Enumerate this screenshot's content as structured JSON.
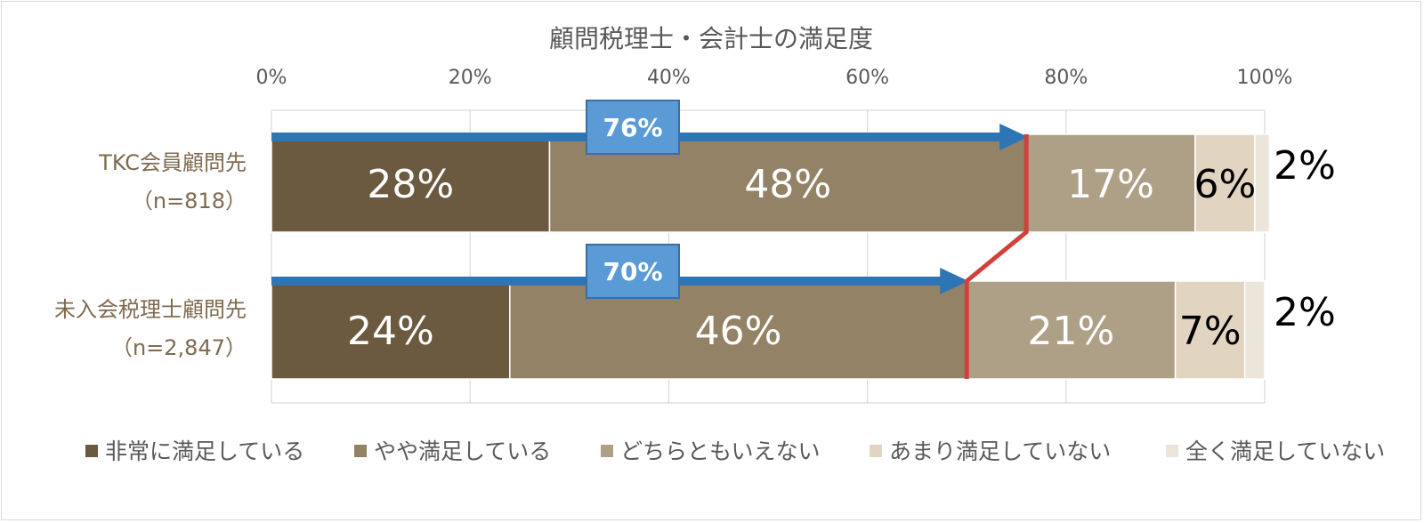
{
  "chart_data": {
    "type": "bar",
    "orientation": "horizontal",
    "stacked": "percent",
    "title": "顧問税理士・会計士の満足度",
    "xlim": [
      0,
      100
    ],
    "x_ticks": [
      "0%",
      "20%",
      "40%",
      "60%",
      "80%",
      "100%"
    ],
    "grid": true,
    "legend_position": "bottom",
    "categories": [
      {
        "name": "TKC会員顧問先",
        "n": "（n=818）"
      },
      {
        "name": "未入会税理士顧問先",
        "n": "（n=2,847）"
      }
    ],
    "series": [
      {
        "name": "非常に満足している",
        "color": "#6b5a40",
        "label_color": "#ffffff",
        "values": [
          28,
          24
        ],
        "labels": [
          "28%",
          "24%"
        ]
      },
      {
        "name": "やや満足している",
        "color": "#938265",
        "label_color": "#ffffff",
        "values": [
          48,
          46
        ],
        "labels": [
          "48%",
          "46%"
        ]
      },
      {
        "name": "どちらともいえない",
        "color": "#ae9f87",
        "label_color": "#ffffff",
        "values": [
          17,
          21
        ],
        "labels": [
          "17%",
          "21%"
        ]
      },
      {
        "name": "あまり満足していない",
        "color": "#e1d5c2",
        "label_color": "#000000",
        "values": [
          6,
          7
        ],
        "labels": [
          "6%",
          "7%"
        ]
      },
      {
        "name": "全く満足していない",
        "color": "#ece5da",
        "label_color": "#000000",
        "values": [
          1.5,
          2
        ],
        "labels": [
          "2%",
          "2%"
        ]
      }
    ],
    "annotations": {
      "cumulative_satisfied": [
        76,
        70
      ],
      "cumulative_labels": [
        "76%",
        "70%"
      ],
      "arrow_color": "#2e75b6",
      "callout_color": "#5b9bd5",
      "connector_color": "#d0413c"
    }
  }
}
